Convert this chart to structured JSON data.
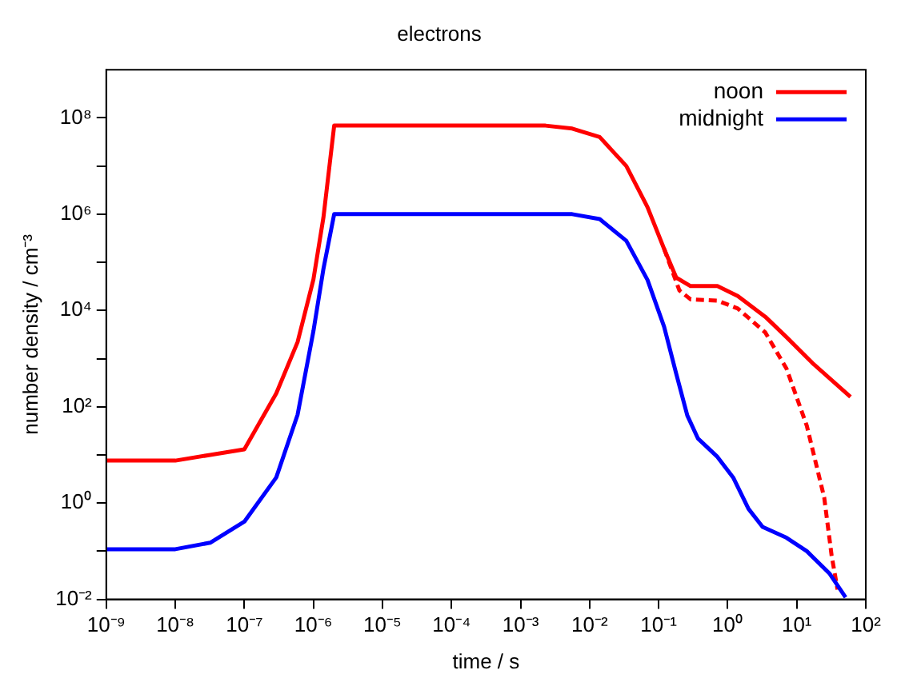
{
  "chart_data": {
    "type": "line",
    "title": "electrons",
    "xlabel": "time / s",
    "ylabel": "number density / cm⁻³",
    "log": "xy",
    "grid": false,
    "legend": "top right",
    "marker": "none",
    "xlim": [
      1e-09,
      100
    ],
    "xticks": [
      {
        "value": 1e-09,
        "label": "10⁻⁹"
      },
      {
        "value": 1e-08,
        "label": "10⁻⁸"
      },
      {
        "value": 1e-07,
        "label": "10⁻⁷"
      },
      {
        "value": 1e-06,
        "label": "10⁻⁶"
      },
      {
        "value": 1e-05,
        "label": "10⁻⁵"
      },
      {
        "value": 0.0001,
        "label": "10⁻⁴"
      },
      {
        "value": 0.001,
        "label": "10⁻³"
      },
      {
        "value": 0.01,
        "label": "10⁻²"
      },
      {
        "value": 0.1,
        "label": "10⁻¹"
      },
      {
        "value": 1,
        "label": "10⁰"
      },
      {
        "value": 10,
        "label": "10¹"
      },
      {
        "value": 100,
        "label": "10²"
      }
    ],
    "ylim": [
      0.01,
      1000000000.0
    ],
    "yticks": [
      {
        "value": 0.01,
        "label": "10⁻²"
      },
      {
        "value": 0.1,
        "label": null
      },
      {
        "value": 1,
        "label": "10⁰"
      },
      {
        "value": 10,
        "label": null
      },
      {
        "value": 100,
        "label": "10²"
      },
      {
        "value": 1000,
        "label": null
      },
      {
        "value": 10000,
        "label": "10⁴"
      },
      {
        "value": 100000,
        "label": null
      },
      {
        "value": 1000000,
        "label": "10⁶"
      },
      {
        "value": 10000000,
        "label": null
      },
      {
        "value": 100000000,
        "label": "10⁸"
      }
    ],
    "series": [
      {
        "name": "noon",
        "color": "#ff0000",
        "line_style": "solid",
        "x": [
          1e-09,
          1e-08,
          3.2e-08,
          1e-07,
          2.9e-07,
          5.9e-07,
          1e-06,
          1.4e-06,
          2e-06,
          0.0023,
          0.0056,
          0.014,
          0.034,
          0.069,
          0.12,
          0.18,
          0.29,
          0.71,
          1.4,
          3.5,
          7.1,
          17,
          60
        ],
        "values": [
          7.6,
          7.6,
          10,
          13,
          190,
          2200,
          44000,
          870000,
          69000000.0,
          69000000.0,
          60000000.0,
          40000000.0,
          10000000.0,
          1400000.0,
          190000.0,
          48000.0,
          32000.0,
          32000.0,
          20000.0,
          7400,
          2800,
          800,
          160
        ]
      },
      {
        "name": "midnight",
        "color": "#0000ff",
        "line_style": "solid",
        "x": [
          1e-09,
          1e-08,
          3.2e-08,
          1e-07,
          2.9e-07,
          5.9e-07,
          1e-06,
          1.4e-06,
          2e-06,
          0.0056,
          0.014,
          0.034,
          0.069,
          0.12,
          0.18,
          0.26,
          0.37,
          0.71,
          1.2,
          2.0,
          3.2,
          7.1,
          14,
          30,
          51
        ],
        "values": [
          0.11,
          0.11,
          0.15,
          0.41,
          3.4,
          68,
          3700,
          74000,
          1000000.0,
          1000000.0,
          790000.0,
          280000.0,
          43000,
          4600,
          480,
          66,
          22,
          9.1,
          3.4,
          0.76,
          0.32,
          0.19,
          0.1,
          0.034,
          0.011
        ]
      },
      {
        "color": "#ff0000",
        "line_style": "dashed",
        "x": [
          0.12,
          0.2,
          0.29,
          0.71,
          1.4,
          3.5,
          7.1,
          14,
          25,
          32,
          39
        ],
        "values": [
          190000.0,
          26000.0,
          17000.0,
          16000.0,
          11000.0,
          3500,
          620,
          40,
          1.3,
          0.081,
          0.016
        ]
      }
    ]
  }
}
